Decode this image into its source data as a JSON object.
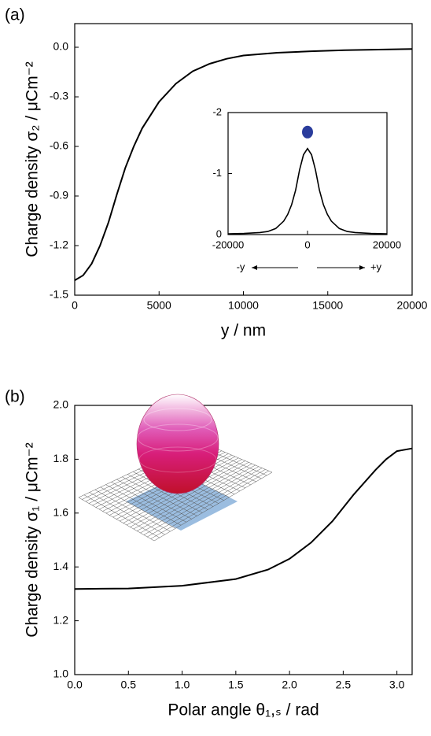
{
  "chart_data": [
    {
      "type": "line",
      "panel": "(a)",
      "ylabel": "Charge density σ₂ / μCm⁻²",
      "xlabel": "y / nm",
      "x": [
        0,
        500,
        1000,
        1500,
        2000,
        2500,
        3000,
        3500,
        4000,
        5000,
        6000,
        7000,
        8000,
        9000,
        10000,
        12000,
        14000,
        16000,
        18000,
        20000
      ],
      "values": [
        -1.41,
        -1.38,
        -1.31,
        -1.2,
        -1.06,
        -0.89,
        -0.73,
        -0.6,
        -0.49,
        -0.33,
        -0.22,
        -0.145,
        -0.1,
        -0.07,
        -0.05,
        -0.033,
        -0.024,
        -0.018,
        -0.014,
        -0.011
      ],
      "color": "#000000",
      "xlim": [
        0,
        20000
      ],
      "xticks": [
        0,
        5000,
        10000,
        15000,
        20000
      ],
      "ylim": [
        -1.5,
        0.143
      ],
      "yticks": [
        {
          "value": 0,
          "label": "0.0"
        },
        -0.3,
        -0.6,
        -0.9,
        -1.2,
        -1.5
      ]
    },
    {
      "type": "line",
      "left_annotation": "-y",
      "right_annotation": "+y",
      "x": [
        -20000,
        -16000,
        -12000,
        -10000,
        -8000,
        -6000,
        -5000,
        -4000,
        -3000,
        -2000,
        -1000,
        0,
        1000,
        2000,
        3000,
        4000,
        5000,
        6000,
        8000,
        10000,
        12000,
        16000,
        20000
      ],
      "values": [
        -0.011,
        -0.018,
        -0.033,
        -0.05,
        -0.1,
        -0.22,
        -0.33,
        -0.49,
        -0.73,
        -1.06,
        -1.31,
        -1.41,
        -1.31,
        -1.06,
        -0.73,
        -0.49,
        -0.33,
        -0.22,
        -0.1,
        -0.05,
        -0.033,
        -0.018,
        -0.011
      ],
      "color": "#000000",
      "points": [
        {
          "x": 0,
          "y": -1.68,
          "color": "#2a3c9c"
        }
      ],
      "xlim": [
        -20000,
        20000
      ],
      "xticks": [
        -20000,
        0,
        20000
      ],
      "ylim": [
        0,
        -2
      ],
      "yticks": [
        -2,
        -1,
        0
      ]
    },
    {
      "type": "line",
      "panel": "(b)",
      "ylabel": "Charge density σ₁ / μCm⁻²",
      "xlabel": "Polar angle θ₁,ₛ / rad",
      "x": [
        0,
        0.5,
        1.0,
        1.5,
        1.8,
        2.0,
        2.2,
        2.4,
        2.6,
        2.8,
        2.9,
        3.0,
        3.14
      ],
      "values": [
        1.318,
        1.32,
        1.33,
        1.355,
        1.39,
        1.43,
        1.49,
        1.57,
        1.67,
        1.76,
        1.8,
        1.83,
        1.84
      ],
      "color": "#000000",
      "xlim": [
        0,
        3.1416
      ],
      "xticks": [
        {
          "value": 0,
          "label": "0.0"
        },
        0.5,
        {
          "value": 1,
          "label": "1.0"
        },
        1.5,
        {
          "value": 2,
          "label": "2.0"
        },
        2.5,
        {
          "value": 3,
          "label": "3.0"
        }
      ],
      "ylim": [
        1.0,
        2.0
      ],
      "yticks": [
        {
          "value": 2,
          "label": "2.0"
        },
        1.8,
        1.6,
        1.4,
        1.2,
        {
          "value": 1,
          "label": "1.0"
        }
      ]
    }
  ]
}
